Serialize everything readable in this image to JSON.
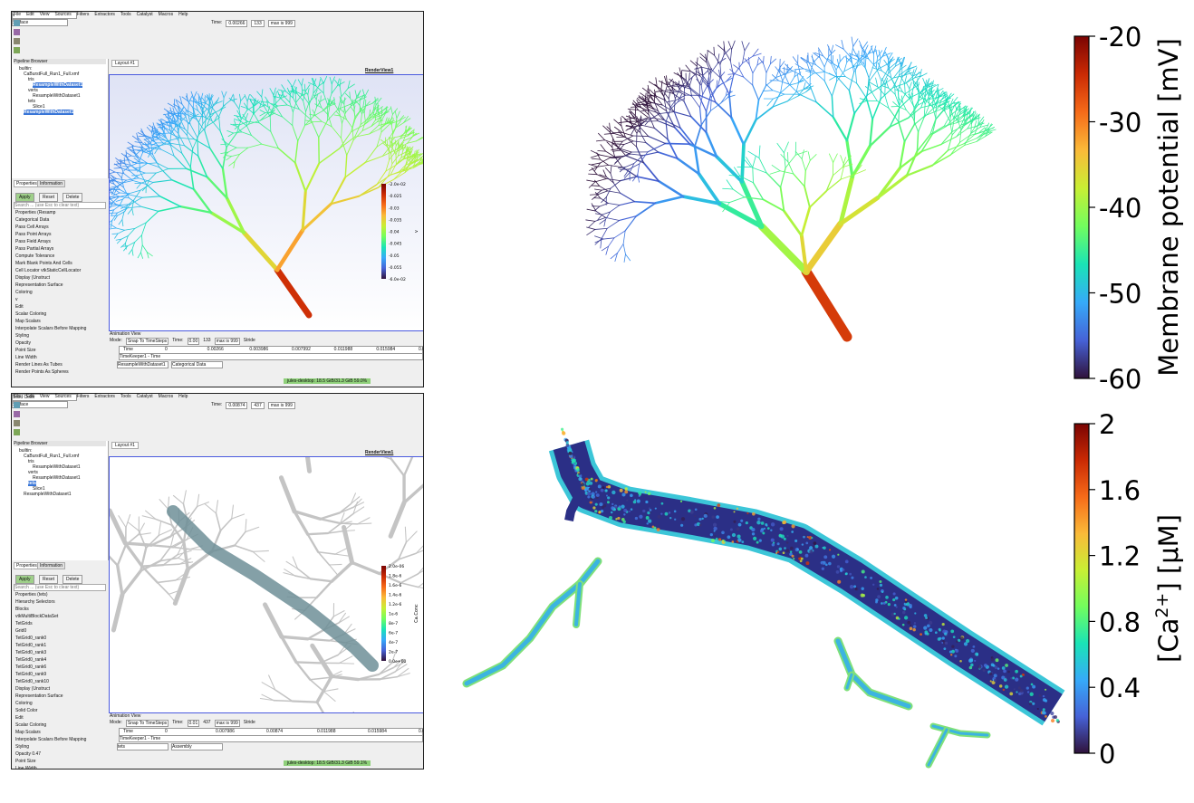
{
  "screenshots": [
    {
      "menu": [
        "File",
        "Edit",
        "View",
        "Sources",
        "Filters",
        "Extractors",
        "Tools",
        "Catalyst",
        "Macros",
        "Help"
      ],
      "time": [
        "Time:",
        "0.00266",
        "133",
        "max is 999"
      ],
      "combo": [
        "v",
        "Surface"
      ],
      "pipeline_title": "Pipeline Browser",
      "pipeline": [
        {
          "label": "builtin:",
          "selected": false
        },
        {
          "label": "CaBurstFull_Run1_Full.xmf",
          "selected": false
        },
        {
          "label": "tris",
          "selected": false
        },
        {
          "label": "ResampleWithDataset1",
          "selected": true
        },
        {
          "label": "verts",
          "selected": false
        },
        {
          "label": "ResampleWithDataset1",
          "selected": false
        },
        {
          "label": "tets",
          "selected": false
        },
        {
          "label": "Slice1",
          "selected": false
        },
        {
          "label": "ResampleWithDataset1",
          "selected": true
        }
      ],
      "tabs": [
        "Properties",
        "Information"
      ],
      "buttons": [
        "Apply",
        "Reset",
        "Delete"
      ],
      "search": "Search ... (use Esc to clear text)",
      "properties": [
        "Properties (Resamp",
        "Categorical Data",
        "Pass Cell Arrays",
        "Pass Point Arrays",
        "Pass Field Arrays",
        "Pass Partial Arrays",
        "Compute Tolerance",
        "Mark Blank Points And Cells",
        "Cell Locator   vtkStaticCellLocator",
        "Display (Unstruct",
        "Representation   Surface",
        "Coloring",
        "v",
        "Edit",
        "Scalar Coloring",
        "Map Scalars",
        "Interpolate Scalars Before Mapping",
        "Styling",
        "Opacity",
        "Point Size",
        "Line Width",
        "Render Lines As Tubes",
        "Render Points As Spheres"
      ],
      "view_tab": "Layout #1",
      "render_view": "RenderView1",
      "legend_ticks": [
        "-2.0e-02",
        "-0.025",
        "-0.03",
        "-0.035",
        "-0.04",
        "-0.045",
        "-0.05",
        "-0.055",
        "-6.0e-02"
      ],
      "legend_title": "v",
      "animation_title": "Animation View",
      "animation_row": [
        "Mode:",
        "Snap To TimeSteps",
        "Time:",
        "0.00",
        "133",
        "max is 999",
        "Stride"
      ],
      "time_axis": [
        "Time",
        "0",
        "0.00266",
        "0.003986",
        "0.007992",
        "0.011988",
        "0.015984",
        "0.01998"
      ],
      "track": "TimeKeeper1 - Time",
      "source_row": [
        "ResampleWithDataset1",
        "Categorical Data"
      ],
      "status": "jules-desktop: 18.5 GiB/31.3 GiB 59.0%"
    },
    {
      "menu": [
        "File",
        "Edit",
        "View",
        "Sources",
        "Filters",
        "Extractors",
        "Tools",
        "Catalyst",
        "Macros",
        "Help"
      ],
      "time": [
        "Time:",
        "0.00874",
        "437",
        "max is 999"
      ],
      "combo": [
        "Solid Color",
        "Surface"
      ],
      "pipeline_title": "Pipeline Browser",
      "pipeline": [
        {
          "label": "builtin:",
          "selected": false
        },
        {
          "label": "CaBurstFull_Run1_Full.xmf",
          "selected": false
        },
        {
          "label": "tris",
          "selected": false
        },
        {
          "label": "ResampleWithDataset1",
          "selected": false
        },
        {
          "label": "verts",
          "selected": false
        },
        {
          "label": "ResampleWithDataset1",
          "selected": false
        },
        {
          "label": "tets",
          "selected": true
        },
        {
          "label": "Slice1",
          "selected": false
        },
        {
          "label": "ResampleWithDataset1",
          "selected": false
        }
      ],
      "tabs": [
        "Properties",
        "Information"
      ],
      "buttons": [
        "Apply",
        "Reset",
        "Delete"
      ],
      "search": "Search ... (use Esc to clear text)",
      "properties": [
        "Properties (tets)",
        "Hierarchy   Selectors",
        "Blocks",
        "vtkMultiBlockDataSet",
        "TetGrids",
        "Grid0",
        "TetGrid0_rank0",
        "TetGrid0_rank1",
        "TetGrid0_rank3",
        "TetGrid0_rank4",
        "TetGrid0_rank6",
        "TetGrid0_rank9",
        "TetGrid0_rank10",
        "Display (Unstruct",
        "Representation   Surface",
        "Coloring",
        "Solid Color",
        "Edit",
        "Scalar Coloring",
        "Map Scalars",
        "Interpolate Scalars Before Mapping",
        "Styling",
        "Opacity   0.47",
        "Point Size",
        "Line Width"
      ],
      "view_tab": "Layout #1",
      "render_view": "RenderView1",
      "legend_ticks": [
        "2.0e-06",
        "1.8e-6",
        "1.6e-6",
        "1.4e-6",
        "1.2e-6",
        "1e-6",
        "8e-7",
        "6e-7",
        "4e-7",
        "2e-7",
        "0.0e+00"
      ],
      "legend_title": "Ca.Conc",
      "animation_title": "Animation View",
      "animation_row": [
        "Mode:",
        "Snap To TimeSteps",
        "Time:",
        "0.01",
        "437",
        "max is 999",
        "Stride"
      ],
      "time_axis": [
        "Time",
        "0",
        "0.007986",
        "0.00874",
        "0.011988",
        "0.015984",
        "0.01998"
      ],
      "track": "TimeKeeper1 - Time",
      "source_row": [
        "tets",
        "Assembly"
      ],
      "status": "jules-desktop: 18.5 GiB/31.3 GiB 59.1%"
    }
  ],
  "colormap": [
    "#30123b",
    "#4662d7",
    "#36aaf9",
    "#1ae4b6",
    "#72fe5e",
    "#c8ef34",
    "#faba39",
    "#f66b19",
    "#ca2a04",
    "#7a0403"
  ],
  "colorbars": [
    {
      "title": [
        "Membrane potential [mV]"
      ],
      "range": [
        -60,
        -20
      ],
      "ticks": [
        -20,
        -30,
        -40,
        -50,
        -60
      ]
    },
    {
      "title": [
        "[Ca",
        "2+",
        "] [μM]"
      ],
      "range": [
        0,
        2
      ],
      "ticks": [
        0,
        0.4,
        0.8,
        1.2,
        1.6,
        2
      ]
    }
  ]
}
